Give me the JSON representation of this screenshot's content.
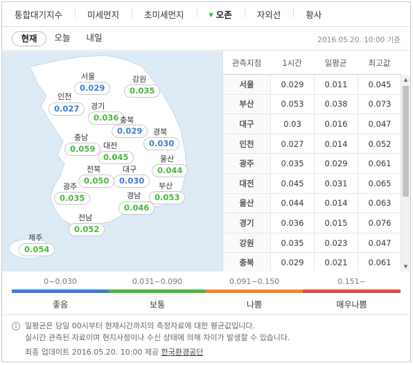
{
  "top_tabs": [
    {
      "label": "통합대기지수"
    },
    {
      "label": "미세먼지"
    },
    {
      "label": "초미세먼지"
    },
    {
      "label": "오존"
    },
    {
      "label": "자외선"
    },
    {
      "label": "황사"
    }
  ],
  "sub_tabs": [
    {
      "label": "현재"
    },
    {
      "label": "오늘"
    },
    {
      "label": "내일"
    }
  ],
  "timestamp": "2016.05.20. 10:00 기준",
  "map": {
    "regions": [
      {
        "name": "서울",
        "value": "0.029",
        "level": "good"
      },
      {
        "name": "강원",
        "value": "0.035",
        "level": "normal"
      },
      {
        "name": "인천",
        "value": "0.027",
        "level": "good"
      },
      {
        "name": "경기",
        "value": "0.036",
        "level": "normal"
      },
      {
        "name": "충북",
        "value": "0.029",
        "level": "good"
      },
      {
        "name": "충남",
        "value": "0.059",
        "level": "normal"
      },
      {
        "name": "대전",
        "value": "0.045",
        "level": "normal"
      },
      {
        "name": "경북",
        "value": "0.030",
        "level": "good"
      },
      {
        "name": "울산",
        "value": "0.044",
        "level": "normal"
      },
      {
        "name": "전북",
        "value": "0.050",
        "level": "normal"
      },
      {
        "name": "대구",
        "value": "0.030",
        "level": "good"
      },
      {
        "name": "광주",
        "value": "0.035",
        "level": "normal"
      },
      {
        "name": "부산",
        "value": "0.053",
        "level": "normal"
      },
      {
        "name": "경남",
        "value": "0.046",
        "level": "normal"
      },
      {
        "name": "전남",
        "value": "0.052",
        "level": "normal"
      },
      {
        "name": "제주",
        "value": "0.054",
        "level": "normal"
      }
    ]
  },
  "table": {
    "headers": [
      "관측지점",
      "1시간",
      "일평균",
      "최고값"
    ],
    "rows": [
      [
        "서울",
        "0.029",
        "0.011",
        "0.045"
      ],
      [
        "부산",
        "0.053",
        "0.038",
        "0.073"
      ],
      [
        "대구",
        "0.03",
        "0.016",
        "0.047"
      ],
      [
        "인천",
        "0.027",
        "0.014",
        "0.052"
      ],
      [
        "광주",
        "0.035",
        "0.029",
        "0.061"
      ],
      [
        "대전",
        "0.045",
        "0.031",
        "0.065"
      ],
      [
        "울산",
        "0.044",
        "0.014",
        "0.063"
      ],
      [
        "경기",
        "0.036",
        "0.015",
        "0.076"
      ],
      [
        "강원",
        "0.035",
        "0.023",
        "0.047"
      ],
      [
        "충북",
        "0.029",
        "0.021",
        "0.061"
      ]
    ]
  },
  "legend": [
    {
      "range": "0~0.030",
      "name": "좋음",
      "color": "#3d7bd8"
    },
    {
      "range": "0.031~0.090",
      "name": "보통",
      "color": "#49b73c"
    },
    {
      "range": "0.091~0.150",
      "name": "나쁨",
      "color": "#f0892b"
    },
    {
      "range": "0.151~",
      "name": "매우나쁨",
      "color": "#e44a3d"
    }
  ],
  "notice": {
    "line1": "일평균은 당일 00시부터 현재시간까지의 측정자료에 대한 평균값입니다.",
    "line2": "실시간 관측된 자료이며 현지사정이나 수신 상태에 의해 차이가 발생할 수 있습니다.",
    "update_prefix": "최종 업데이트 2016.05.20. 10:00 제공",
    "provider": "한국환경공단"
  },
  "colors": {
    "good": "#3d7bd8",
    "normal": "#49b73c",
    "land": "#ffffff",
    "sea": "#dbeaf5",
    "active_marker": "#2dae3c"
  }
}
